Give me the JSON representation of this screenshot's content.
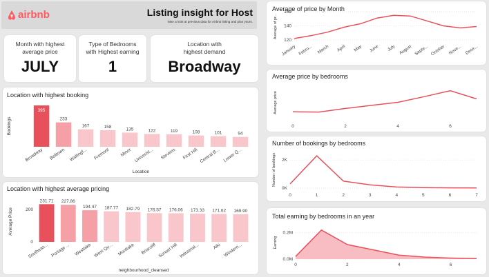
{
  "header": {
    "brand": "airbnb",
    "title": "Listing insight for Host",
    "subtitle": "Take a look at previous data for Airbnb listing and plan yours.",
    "brand_color": "#ff5a5f"
  },
  "kpis": [
    {
      "label_line1": "Month with highest",
      "label_line2": "average price",
      "value": "JULY"
    },
    {
      "label_line1": "Type of Bedrooms",
      "label_line2": "with Highest earning",
      "value": "1"
    },
    {
      "label_line1": "Location with",
      "label_line2": "highest demand",
      "value": "Broadway"
    }
  ],
  "colors": {
    "accent": "#e8505b",
    "bar_light": "#f9c6cb",
    "bar_mid": "#f4a0a6",
    "area_fill": "#f7b6bb"
  },
  "chart_data": [
    {
      "id": "booking",
      "type": "bar",
      "title": "Location with highest booking",
      "xlabel": "Location",
      "ylabel": "Bookings",
      "categories": [
        "Broadway",
        "Belltown",
        "Wallingf...",
        "Fremont",
        "Minor",
        "Univerist...",
        "Stevens",
        "First Hill",
        "Central B...",
        "Lower Q..."
      ],
      "values": [
        395,
        233,
        167,
        158,
        135,
        122,
        119,
        108,
        101,
        94
      ],
      "labels": [
        "395",
        "233",
        "167",
        "158",
        "135",
        "122",
        "119",
        "108",
        "101",
        "94"
      ]
    },
    {
      "id": "pricing",
      "type": "bar",
      "title": "Location with highest average pricing",
      "xlabel": "neighbourhood_cleansed",
      "ylabel": "Average Price",
      "yticks": [
        "0",
        "200"
      ],
      "categories": [
        "Southeas...",
        "Portage ...",
        "Westlake",
        "West Qu...",
        "Montlake",
        "Briarcliff",
        "Sunset Hill",
        "Industrial...",
        "Alki",
        "Windern..."
      ],
      "values": [
        231.71,
        227.86,
        194.47,
        187.77,
        182.79,
        176.57,
        176.06,
        173.33,
        171.62,
        169.9
      ],
      "labels": [
        "231.71",
        "227.86",
        "194.47",
        "187.77",
        "182.79",
        "176.57",
        "176.06",
        "173.33",
        "171.62",
        "169.90"
      ]
    },
    {
      "id": "month",
      "type": "line",
      "title": "Average of price by Month",
      "ylabel": "Average of pr...",
      "categories": [
        "January",
        "Febru...",
        "March",
        "April",
        "May",
        "June",
        "July",
        "August",
        "Septe...",
        "October",
        "Nove...",
        "Dece..."
      ],
      "values": [
        122,
        126,
        131,
        138,
        143,
        151,
        155,
        154,
        147,
        140,
        137,
        139
      ],
      "yticks": [
        120,
        140,
        160
      ],
      "ylim": [
        116,
        162
      ]
    },
    {
      "id": "price_bed",
      "type": "line",
      "title": "Average price by bedrooms",
      "ylabel": "Average price",
      "x": [
        0,
        1,
        2,
        3,
        4,
        5,
        6,
        7
      ],
      "values": [
        95,
        92,
        148,
        198,
        245,
        335,
        430,
        300
      ],
      "xticks": [
        0,
        2,
        4,
        6
      ],
      "ylim": [
        0,
        480
      ]
    },
    {
      "id": "bookings_bed",
      "type": "line",
      "title": "Number of bookings by bedrooms",
      "ylabel": "Number of bookings",
      "x": [
        0,
        1,
        2,
        3,
        4,
        5,
        6,
        7
      ],
      "values": [
        300,
        2300,
        500,
        230,
        80,
        40,
        20,
        10
      ],
      "xticks": [
        0,
        1,
        2,
        3,
        4,
        5,
        6,
        7
      ],
      "yticks": [
        "0K",
        "2K"
      ],
      "ylim": [
        0,
        2600
      ]
    },
    {
      "id": "earning_bed",
      "type": "area",
      "title": "Total earning by bedrooms in an year",
      "ylabel": "Earning",
      "x": [
        0,
        1,
        2,
        3,
        4,
        5,
        6,
        7
      ],
      "values": [
        20000,
        220000,
        110000,
        70000,
        30000,
        15000,
        8000,
        4000
      ],
      "xticks": [
        0,
        2,
        4,
        6
      ],
      "yticks": [
        "0.0M",
        "0.2M"
      ],
      "ylim": [
        0,
        250000
      ]
    }
  ]
}
